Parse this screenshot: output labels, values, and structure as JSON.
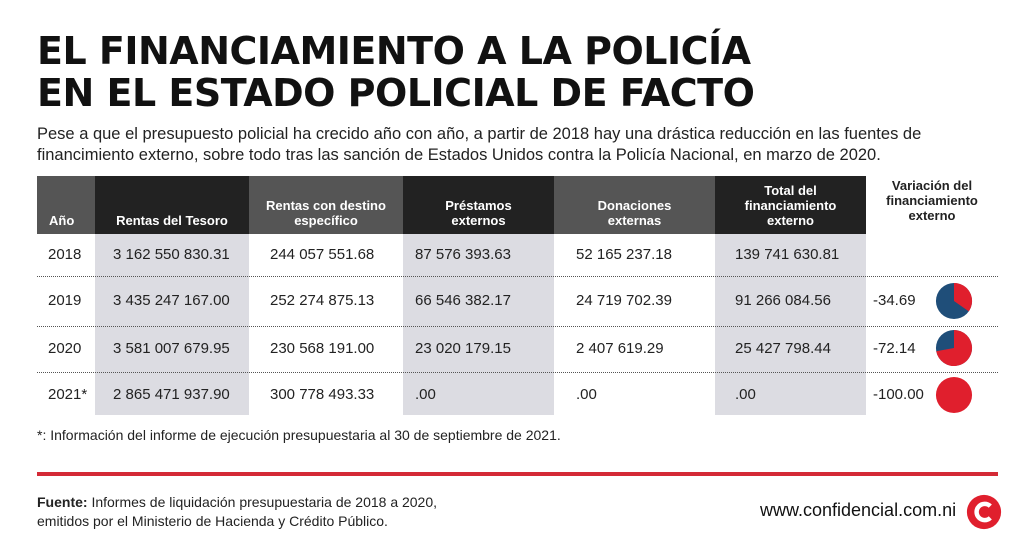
{
  "title_line1": "EL FINANCIAMIENTO A LA POLICÍA",
  "title_line2": "EN EL ESTADO POLICIAL DE FACTO",
  "subtitle": "Pese a que el presupuesto policial ha crecido año con año, a partir de 2018 hay una drástica reducción en las fuentes de financimiento externo, sobre todo tras las sanción de Estados Unidos contra la Policía Nacional, en marzo de 2020.",
  "colors": {
    "header_dark": "#222222",
    "column_shade": "#dcdce2",
    "accent_red": "#e01f2d",
    "pie_blue": "#1f4e79",
    "rule_red": "#d42a36"
  },
  "chart_data": {
    "type": "table",
    "columns": [
      "Año",
      "Rentas del Tesoro",
      "Rentas con destino específico",
      "Préstamos externos",
      "Donaciones externas",
      "Total del financiamiento externo",
      "Variación del financiamiento externo"
    ],
    "rows": [
      {
        "year": "2018",
        "tesoro": "3 162 550 830.31",
        "destino": "244 057 551.68",
        "prestamos": "87 576 393.63",
        "donaciones": "52 165 237.18",
        "total": "139 741 630.81",
        "variacion": "",
        "pct": null
      },
      {
        "year": "2019",
        "tesoro": "3 435 247 167.00",
        "destino": "252 274 875.13",
        "prestamos": "66 546 382.17",
        "donaciones": "24 719 702.39",
        "total": "91 266 084.56",
        "variacion": "-34.69",
        "pct": 34.69
      },
      {
        "year": "2020",
        "tesoro": "3 581 007 679.95",
        "destino": "230 568 191.00",
        "prestamos": "23 020 179.15",
        "donaciones": "2 407 619.29",
        "total": "25 427 798.44",
        "variacion": "-72.14",
        "pct": 72.14
      },
      {
        "year": "2021*",
        "tesoro": "2 865 471 937.90",
        "destino": "300 778 493.33",
        "prestamos": ".00",
        "donaciones": ".00",
        "total": ".00",
        "variacion": "-100.00",
        "pct": 100
      }
    ]
  },
  "footnote": "*: Información del informe de ejecución presupuestaria al 30 de septiembre de 2021.",
  "source_label": "Fuente:",
  "source_line1": " Informes de liquidación presupuestaria de 2018 a 2020,",
  "source_line2": "emitidos por el Ministerio de Hacienda y Crédito Público.",
  "website": "www.confidencial.com.ni",
  "logo_icon": "confidencial-c-logo"
}
